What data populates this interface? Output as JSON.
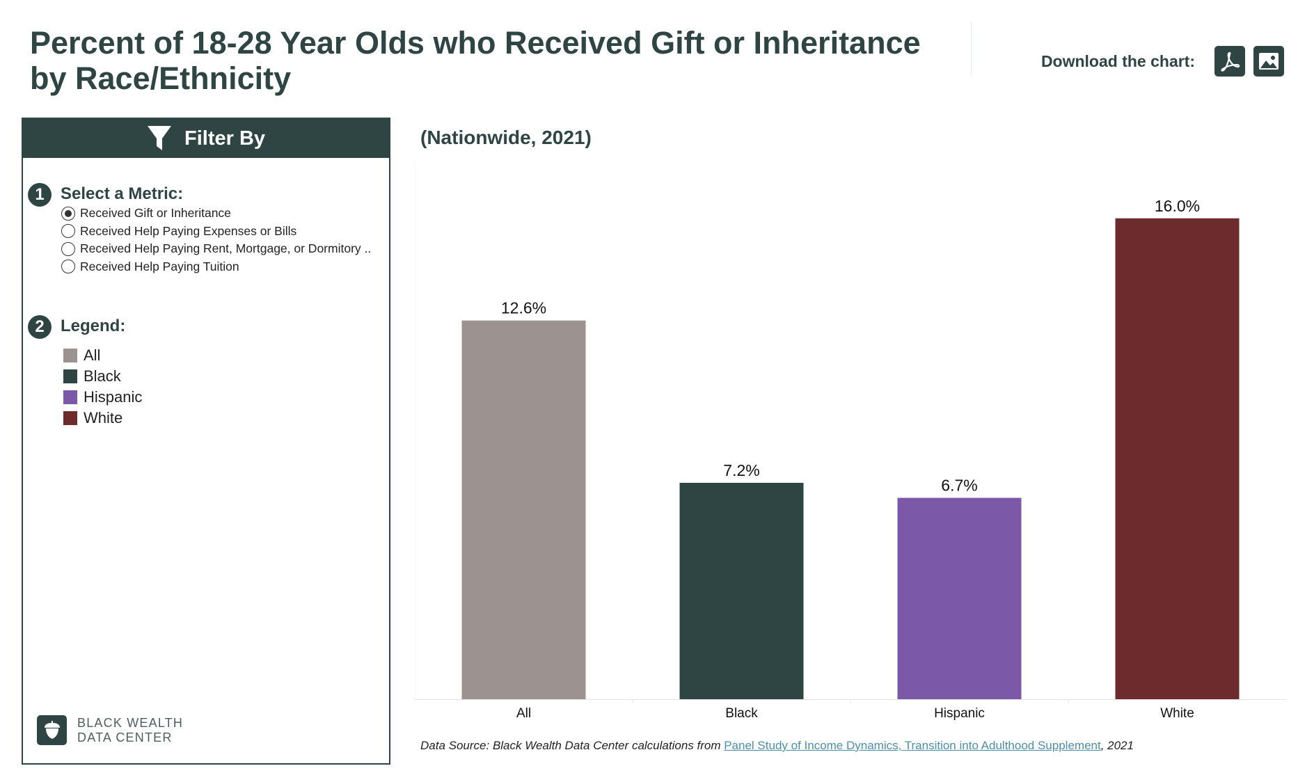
{
  "header": {
    "title": "Percent of 18-28 Year Olds who Received Gift or Inheritance by Race/Ethnicity",
    "download_label": "Download the chart:"
  },
  "icons": {
    "pdf": "pdf-icon",
    "image": "image-icon",
    "filter": "filter-icon",
    "logo": "acorn-icon"
  },
  "filter_panel": {
    "header": "Filter By",
    "metric_step": {
      "number": "1",
      "title": "Select a Metric:"
    },
    "metrics": [
      {
        "label": "Received Gift or Inheritance",
        "selected": true
      },
      {
        "label": "Received Help Paying Expenses or Bills",
        "selected": false
      },
      {
        "label": "Received Help Paying Rent, Mortgage, or Dormitory ..",
        "selected": false
      },
      {
        "label": "Received Help Paying Tuition",
        "selected": false
      }
    ],
    "legend_step": {
      "number": "2",
      "title": "Legend:"
    },
    "legend": [
      {
        "label": "All",
        "color": "#9c9290"
      },
      {
        "label": "Black",
        "color": "#2e4543"
      },
      {
        "label": "Hispanic",
        "color": "#7b58a8"
      },
      {
        "label": "White",
        "color": "#6e2b2e"
      }
    ],
    "logo_line1": "BLACK WEALTH",
    "logo_line2": "DATA CENTER"
  },
  "chart_subtitle": "(Nationwide, 2021)",
  "chart_data": {
    "type": "bar",
    "title": "Percent of 18-28 Year Olds who Received Gift or Inheritance by Race/Ethnicity",
    "subtitle": "(Nationwide, 2021)",
    "categories": [
      "All",
      "Black",
      "Hispanic",
      "White"
    ],
    "values": [
      12.6,
      7.2,
      6.7,
      16.0
    ],
    "data_labels": [
      "12.6%",
      "7.2%",
      "6.7%",
      "16.0%"
    ],
    "colors": [
      "#9c9290",
      "#2e4543",
      "#7b58a8",
      "#6e2b2e"
    ],
    "xlabel": "",
    "ylabel": "",
    "ylim": [
      0,
      17.5
    ],
    "grid": false,
    "legend_placement": "left-panel"
  },
  "source": {
    "prefix": "Data Source: Black Wealth Data Center calculations from ",
    "link_text": "Panel Study of Income Dynamics, Transition into Adulthood Supplement",
    "suffix": ", 2021"
  }
}
